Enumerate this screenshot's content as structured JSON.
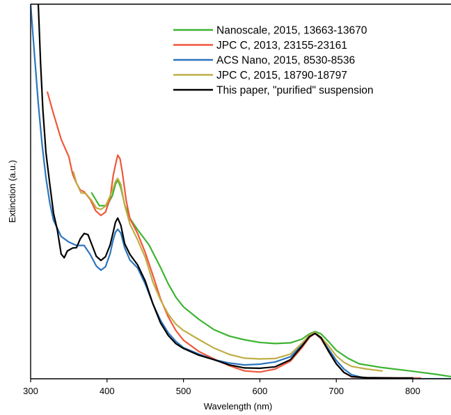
{
  "chart_data": {
    "type": "line",
    "title": "",
    "xlabel": "Wavelength (nm)",
    "ylabel": "Extinction (a.u.)",
    "xlim": [
      300,
      850
    ],
    "ylim": [
      0,
      1
    ],
    "x_ticks": [
      300,
      400,
      500,
      600,
      700,
      800
    ],
    "y_ticks": [],
    "grid": false,
    "legend_position": "top-right",
    "series": [
      {
        "name": "Nanoscale, 2015, 13663-13670",
        "color": "#3cb431",
        "points": [
          [
            380,
            0.496
          ],
          [
            390,
            0.462
          ],
          [
            400,
            0.462
          ],
          [
            407,
            0.489
          ],
          [
            411,
            0.519
          ],
          [
            414,
            0.531
          ],
          [
            418,
            0.51
          ],
          [
            423,
            0.465
          ],
          [
            430,
            0.428
          ],
          [
            440,
            0.398
          ],
          [
            455,
            0.357
          ],
          [
            470,
            0.297
          ],
          [
            480,
            0.254
          ],
          [
            490,
            0.218
          ],
          [
            500,
            0.192
          ],
          [
            520,
            0.159
          ],
          [
            540,
            0.131
          ],
          [
            560,
            0.114
          ],
          [
            580,
            0.104
          ],
          [
            600,
            0.097
          ],
          [
            620,
            0.094
          ],
          [
            640,
            0.096
          ],
          [
            655,
            0.106
          ],
          [
            665,
            0.12
          ],
          [
            672,
            0.126
          ],
          [
            680,
            0.12
          ],
          [
            690,
            0.099
          ],
          [
            700,
            0.076
          ],
          [
            715,
            0.055
          ],
          [
            730,
            0.04
          ],
          [
            760,
            0.03
          ],
          [
            800,
            0.02
          ],
          [
            830,
            0.012
          ],
          [
            850,
            0.006
          ]
        ]
      },
      {
        "name": "JPC C, 2013, 23155-23161",
        "color": "#f0573a",
        "points": [
          [
            322,
            0.765
          ],
          [
            330,
            0.707
          ],
          [
            340,
            0.639
          ],
          [
            350,
            0.593
          ],
          [
            355,
            0.546
          ],
          [
            360,
            0.522
          ],
          [
            365,
            0.504
          ],
          [
            370,
            0.499
          ],
          [
            378,
            0.479
          ],
          [
            385,
            0.449
          ],
          [
            392,
            0.436
          ],
          [
            398,
            0.445
          ],
          [
            404,
            0.482
          ],
          [
            408,
            0.542
          ],
          [
            411,
            0.571
          ],
          [
            414,
            0.597
          ],
          [
            417,
            0.587
          ],
          [
            420,
            0.551
          ],
          [
            425,
            0.476
          ],
          [
            430,
            0.427
          ],
          [
            440,
            0.388
          ],
          [
            450,
            0.337
          ],
          [
            460,
            0.276
          ],
          [
            470,
            0.213
          ],
          [
            480,
            0.166
          ],
          [
            490,
            0.129
          ],
          [
            500,
            0.103
          ],
          [
            520,
            0.073
          ],
          [
            540,
            0.053
          ],
          [
            560,
            0.035
          ],
          [
            580,
            0.021
          ],
          [
            600,
            0.018
          ],
          [
            620,
            0.026
          ],
          [
            640,
            0.047
          ],
          [
            655,
            0.083
          ],
          [
            665,
            0.111
          ],
          [
            672,
            0.121
          ],
          [
            680,
            0.107
          ],
          [
            690,
            0.073
          ],
          [
            700,
            0.04
          ],
          [
            710,
            0.017
          ],
          [
            720,
            0.005
          ],
          [
            740,
            0.003
          ],
          [
            780,
            0.002
          ],
          [
            810,
            0.002
          ]
        ]
      },
      {
        "name": "ACS Nano, 2015, 8530-8536",
        "color": "#2c75bd",
        "points": [
          [
            300,
            1.0
          ],
          [
            305,
            0.866
          ],
          [
            310,
            0.735
          ],
          [
            315,
            0.625
          ],
          [
            320,
            0.537
          ],
          [
            325,
            0.47
          ],
          [
            330,
            0.423
          ],
          [
            340,
            0.38
          ],
          [
            350,
            0.365
          ],
          [
            360,
            0.356
          ],
          [
            370,
            0.356
          ],
          [
            378,
            0.332
          ],
          [
            386,
            0.301
          ],
          [
            392,
            0.29
          ],
          [
            398,
            0.299
          ],
          [
            404,
            0.334
          ],
          [
            408,
            0.371
          ],
          [
            411,
            0.391
          ],
          [
            414,
            0.399
          ],
          [
            418,
            0.389
          ],
          [
            423,
            0.35
          ],
          [
            430,
            0.317
          ],
          [
            440,
            0.296
          ],
          [
            450,
            0.253
          ],
          [
            460,
            0.2
          ],
          [
            470,
            0.156
          ],
          [
            480,
            0.123
          ],
          [
            490,
            0.1
          ],
          [
            500,
            0.083
          ],
          [
            520,
            0.066
          ],
          [
            540,
            0.051
          ],
          [
            560,
            0.042
          ],
          [
            580,
            0.037
          ],
          [
            600,
            0.039
          ],
          [
            620,
            0.045
          ],
          [
            640,
            0.059
          ],
          [
            655,
            0.09
          ],
          [
            665,
            0.114
          ],
          [
            672,
            0.121
          ],
          [
            680,
            0.109
          ],
          [
            690,
            0.079
          ],
          [
            700,
            0.049
          ],
          [
            710,
            0.026
          ],
          [
            720,
            0.011
          ],
          [
            735,
            0.003
          ],
          [
            760,
            0.0
          ],
          [
            850,
            0.0
          ]
        ]
      },
      {
        "name": "JPC C, 2015, 18790-18797",
        "color": "#c0ad44",
        "points": [
          [
            356,
            0.552
          ],
          [
            360,
            0.523
          ],
          [
            366,
            0.496
          ],
          [
            372,
            0.495
          ],
          [
            380,
            0.476
          ],
          [
            386,
            0.456
          ],
          [
            392,
            0.452
          ],
          [
            398,
            0.461
          ],
          [
            404,
            0.488
          ],
          [
            408,
            0.508
          ],
          [
            411,
            0.527
          ],
          [
            414,
            0.535
          ],
          [
            418,
            0.519
          ],
          [
            423,
            0.464
          ],
          [
            430,
            0.413
          ],
          [
            440,
            0.371
          ],
          [
            450,
            0.324
          ],
          [
            460,
            0.258
          ],
          [
            470,
            0.21
          ],
          [
            480,
            0.173
          ],
          [
            490,
            0.146
          ],
          [
            500,
            0.129
          ],
          [
            520,
            0.105
          ],
          [
            540,
            0.082
          ],
          [
            560,
            0.065
          ],
          [
            580,
            0.055
          ],
          [
            600,
            0.053
          ],
          [
            620,
            0.054
          ],
          [
            640,
            0.066
          ],
          [
            655,
            0.095
          ],
          [
            665,
            0.117
          ],
          [
            672,
            0.124
          ],
          [
            680,
            0.111
          ],
          [
            690,
            0.088
          ],
          [
            700,
            0.061
          ],
          [
            710,
            0.044
          ],
          [
            720,
            0.033
          ],
          [
            740,
            0.026
          ],
          [
            760,
            0.021
          ]
        ]
      },
      {
        "name": "This paper, \"purified\" suspension",
        "color": "#000000",
        "points": [
          [
            310,
            1.0
          ],
          [
            313,
            0.843
          ],
          [
            316,
            0.718
          ],
          [
            320,
            0.604
          ],
          [
            325,
            0.52
          ],
          [
            330,
            0.442
          ],
          [
            335,
            0.397
          ],
          [
            340,
            0.333
          ],
          [
            344,
            0.323
          ],
          [
            348,
            0.341
          ],
          [
            355,
            0.349
          ],
          [
            360,
            0.35
          ],
          [
            365,
            0.374
          ],
          [
            370,
            0.388
          ],
          [
            375,
            0.385
          ],
          [
            380,
            0.359
          ],
          [
            386,
            0.327
          ],
          [
            392,
            0.316
          ],
          [
            398,
            0.326
          ],
          [
            404,
            0.357
          ],
          [
            408,
            0.391
          ],
          [
            411,
            0.418
          ],
          [
            414,
            0.429
          ],
          [
            418,
            0.41
          ],
          [
            423,
            0.361
          ],
          [
            430,
            0.332
          ],
          [
            440,
            0.304
          ],
          [
            450,
            0.261
          ],
          [
            460,
            0.2
          ],
          [
            470,
            0.149
          ],
          [
            480,
            0.116
          ],
          [
            490,
            0.094
          ],
          [
            500,
            0.081
          ],
          [
            520,
            0.063
          ],
          [
            540,
            0.051
          ],
          [
            560,
            0.037
          ],
          [
            580,
            0.029
          ],
          [
            600,
            0.028
          ],
          [
            620,
            0.032
          ],
          [
            640,
            0.051
          ],
          [
            655,
            0.087
          ],
          [
            665,
            0.113
          ],
          [
            672,
            0.121
          ],
          [
            680,
            0.11
          ],
          [
            690,
            0.073
          ],
          [
            700,
            0.04
          ],
          [
            710,
            0.017
          ],
          [
            720,
            0.006
          ],
          [
            740,
            0.003
          ],
          [
            780,
            0.002
          ],
          [
            800,
            0.002
          ]
        ]
      }
    ]
  }
}
